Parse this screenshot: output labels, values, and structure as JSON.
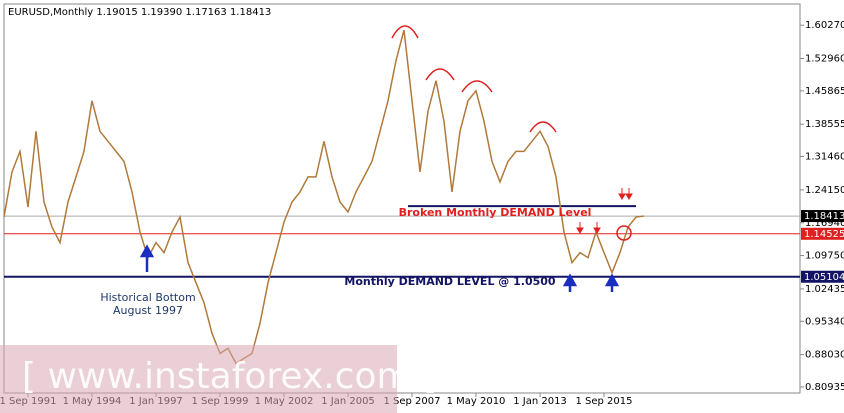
{
  "chart_data": {
    "type": "line",
    "title": "EURUSD,Monthly  1.19015 1.19390 1.17163 1.18413",
    "categories": [
      null,
      null,
      null,
      "1 Sep 1991",
      null,
      null,
      null,
      null,
      null,
      null,
      null,
      "1 May 1994",
      null,
      null,
      null,
      null,
      null,
      null,
      null,
      "1 Jan 1997",
      null,
      null,
      null,
      null,
      null,
      null,
      null,
      "1 Sep 1999",
      null,
      null,
      null,
      null,
      null,
      null,
      null,
      "1 May 2002",
      null,
      null,
      null,
      null,
      null,
      null,
      null,
      "1 Jan 2005",
      null,
      null,
      null,
      null,
      null,
      null,
      null,
      "1 Sep 2007",
      null,
      null,
      null,
      null,
      null,
      null,
      null,
      "1 May 2010",
      null,
      null,
      null,
      null,
      null,
      null,
      null,
      "1 Jan 2013",
      null,
      null,
      null,
      null,
      null,
      null,
      null,
      "1 Sep 2015",
      null,
      null,
      null,
      null,
      null
    ],
    "series": [
      {
        "name": "EURUSD",
        "color": "#b07a3a",
        "values": [
          1.182,
          1.281,
          1.326,
          1.204,
          1.37,
          1.215,
          1.16,
          1.126,
          1.215,
          1.27,
          1.326,
          1.437,
          1.37,
          1.348,
          1.326,
          1.304,
          1.237,
          1.149,
          1.093,
          1.126,
          1.104,
          1.149,
          1.182,
          1.082,
          1.038,
          0.994,
          0.927,
          0.883,
          0.894,
          0.861,
          0.872,
          0.883,
          0.949,
          1.038,
          1.104,
          1.171,
          1.215,
          1.237,
          1.27,
          1.27,
          1.348,
          1.27,
          1.215,
          1.193,
          1.237,
          1.27,
          1.304,
          1.37,
          1.437,
          1.525,
          1.592,
          1.437,
          1.281,
          1.414,
          1.481,
          1.392,
          1.237,
          1.37,
          1.437,
          1.459,
          1.392,
          1.304,
          1.259,
          1.304,
          1.326,
          1.326,
          1.348,
          1.37,
          1.337,
          1.27,
          1.149,
          1.082,
          1.104,
          1.093,
          1.149,
          1.104,
          1.06,
          1.104,
          1.16,
          1.182,
          1.18413
        ]
      }
    ],
    "ylim": [
      0.7961,
      1.647
    ],
    "yticks": [
      {
        "value": 1.6027,
        "label": "1.60270"
      },
      {
        "value": 1.5296,
        "label": "1.52960"
      },
      {
        "value": 1.45865,
        "label": "1.45865"
      },
      {
        "value": 1.38555,
        "label": "1.38555"
      },
      {
        "value": 1.3146,
        "label": "1.31460"
      },
      {
        "value": 1.2415,
        "label": "1.24150"
      },
      {
        "value": 1.1694,
        "label": "1.16940"
      },
      {
        "value": 1.0975,
        "label": "1.09750"
      },
      {
        "value": 1.02435,
        "label": "1.02435"
      },
      {
        "value": 0.9534,
        "label": "0.95340"
      },
      {
        "value": 0.8803,
        "label": "0.88030"
      },
      {
        "value": 0.80935,
        "label": "0.80935"
      }
    ],
    "levels": [
      {
        "value": 1.18413,
        "color": "#000000"
      },
      {
        "value": 1.14525,
        "color": "#e02020"
      },
      {
        "value": 1.05104,
        "color": "#141464"
      }
    ],
    "annotations": [
      {
        "text": "Broken Monthly DEMAND Level",
        "value": 1.206
      },
      {
        "text": "Monthly DEMAND LEVEL @ 1.0500"
      },
      {
        "text": "Historical Bottom"
      },
      {
        "text": "August 1997"
      }
    ],
    "watermark": "[ www.instaforex.com ]"
  }
}
